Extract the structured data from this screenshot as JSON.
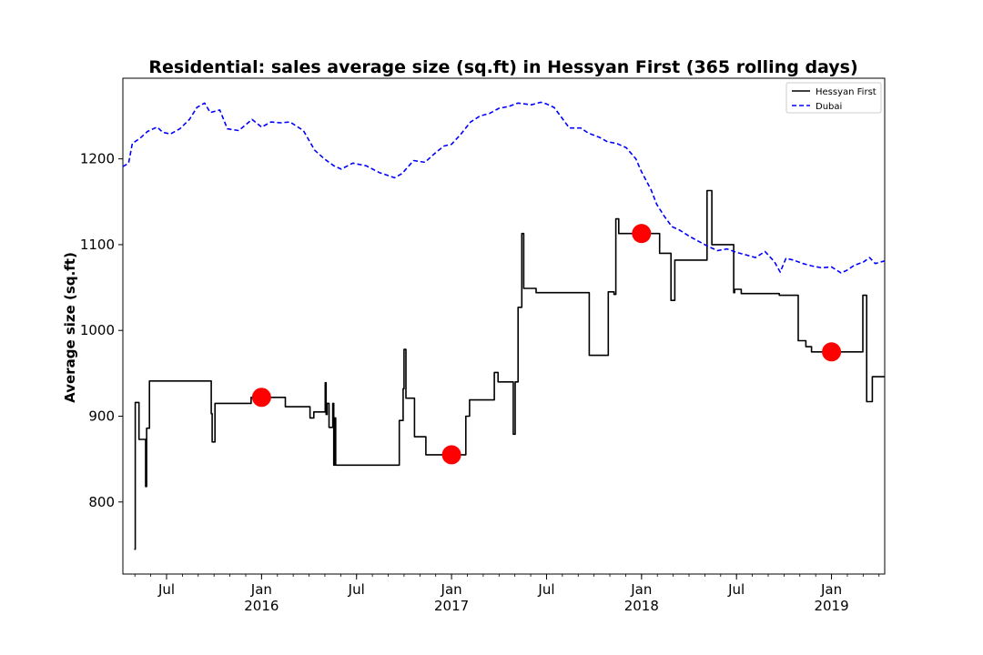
{
  "chart_data": {
    "type": "line",
    "title": "Residential: sales average size (sq.ft) in Hessyan First (365 rolling days)",
    "xlabel": "",
    "ylabel": "Average size (sq.ft)",
    "xlim": [
      2015.27,
      2019.28
    ],
    "ylim": [
      716,
      1294
    ],
    "yticks": [
      800,
      900,
      1000,
      1100,
      1200
    ],
    "grid": false,
    "legend_position": "top-right",
    "xticks_major": [
      {
        "x": 2015.5,
        "label": "Jul",
        "sublabel": ""
      },
      {
        "x": 2016.0,
        "label": "Jan",
        "sublabel": "2016"
      },
      {
        "x": 2016.5,
        "label": "Jul",
        "sublabel": ""
      },
      {
        "x": 2017.0,
        "label": "Jan",
        "sublabel": "2017"
      },
      {
        "x": 2017.5,
        "label": "Jul",
        "sublabel": ""
      },
      {
        "x": 2018.0,
        "label": "Jan",
        "sublabel": "2018"
      },
      {
        "x": 2018.5,
        "label": "Jul",
        "sublabel": ""
      },
      {
        "x": 2019.0,
        "label": "Jan",
        "sublabel": "2019"
      }
    ],
    "series": [
      {
        "name": "Hessyan First",
        "color": "#000000",
        "style": "solid",
        "step": true,
        "points": [
          [
            2015.33,
            745
          ],
          [
            2015.335,
            916
          ],
          [
            2015.35,
            916
          ],
          [
            2015.355,
            873
          ],
          [
            2015.385,
            873
          ],
          [
            2015.39,
            818
          ],
          [
            2015.395,
            886
          ],
          [
            2015.405,
            886
          ],
          [
            2015.41,
            941
          ],
          [
            2015.73,
            941
          ],
          [
            2015.735,
            903
          ],
          [
            2015.74,
            870
          ],
          [
            2015.75,
            870
          ],
          [
            2015.755,
            915
          ],
          [
            2015.94,
            915
          ],
          [
            2015.945,
            922
          ],
          [
            2016.12,
            922
          ],
          [
            2016.125,
            911
          ],
          [
            2016.25,
            911
          ],
          [
            2016.255,
            898
          ],
          [
            2016.27,
            898
          ],
          [
            2016.275,
            905
          ],
          [
            2016.33,
            905
          ],
          [
            2016.335,
            939
          ],
          [
            2016.34,
            902
          ],
          [
            2016.345,
            915
          ],
          [
            2016.35,
            915
          ],
          [
            2016.355,
            887
          ],
          [
            2016.37,
            887
          ],
          [
            2016.375,
            915
          ],
          [
            2016.38,
            843
          ],
          [
            2016.385,
            898
          ],
          [
            2016.39,
            843
          ],
          [
            2016.72,
            843
          ],
          [
            2016.725,
            895
          ],
          [
            2016.74,
            895
          ],
          [
            2016.745,
            932
          ],
          [
            2016.75,
            978
          ],
          [
            2016.755,
            978
          ],
          [
            2016.76,
            921
          ],
          [
            2016.8,
            921
          ],
          [
            2016.805,
            876
          ],
          [
            2016.86,
            876
          ],
          [
            2016.865,
            855
          ],
          [
            2017.07,
            855
          ],
          [
            2017.075,
            900
          ],
          [
            2017.09,
            900
          ],
          [
            2017.095,
            919
          ],
          [
            2017.22,
            919
          ],
          [
            2017.225,
            951
          ],
          [
            2017.24,
            951
          ],
          [
            2017.245,
            940
          ],
          [
            2017.32,
            940
          ],
          [
            2017.325,
            879
          ],
          [
            2017.33,
            879
          ],
          [
            2017.335,
            940
          ],
          [
            2017.35,
            1027
          ],
          [
            2017.365,
            1027
          ],
          [
            2017.37,
            1113
          ],
          [
            2017.375,
            1113
          ],
          [
            2017.38,
            1049
          ],
          [
            2017.44,
            1049
          ],
          [
            2017.445,
            1044
          ],
          [
            2017.72,
            1044
          ],
          [
            2017.725,
            971
          ],
          [
            2017.82,
            971
          ],
          [
            2017.825,
            1045
          ],
          [
            2017.85,
            1045
          ],
          [
            2017.855,
            1042
          ],
          [
            2017.86,
            1042
          ],
          [
            2017.865,
            1130
          ],
          [
            2017.875,
            1130
          ],
          [
            2017.88,
            1113
          ],
          [
            2018.09,
            1113
          ],
          [
            2018.095,
            1090
          ],
          [
            2018.15,
            1090
          ],
          [
            2018.155,
            1035
          ],
          [
            2018.17,
            1035
          ],
          [
            2018.175,
            1082
          ],
          [
            2018.34,
            1082
          ],
          [
            2018.345,
            1163
          ],
          [
            2018.365,
            1163
          ],
          [
            2018.37,
            1100
          ],
          [
            2018.48,
            1100
          ],
          [
            2018.485,
            1044
          ],
          [
            2018.49,
            1048
          ],
          [
            2018.52,
            1048
          ],
          [
            2018.525,
            1043
          ],
          [
            2018.72,
            1043
          ],
          [
            2018.725,
            1041
          ],
          [
            2018.82,
            1041
          ],
          [
            2018.825,
            988
          ],
          [
            2018.86,
            988
          ],
          [
            2018.865,
            981
          ],
          [
            2018.89,
            981
          ],
          [
            2018.895,
            975
          ],
          [
            2019.16,
            975
          ],
          [
            2019.165,
            1041
          ],
          [
            2019.18,
            1041
          ],
          [
            2019.185,
            917
          ],
          [
            2019.21,
            917
          ],
          [
            2019.215,
            946
          ],
          [
            2019.28,
            946
          ]
        ]
      },
      {
        "name": "Dubai",
        "color": "#0000ff",
        "style": "dashed",
        "step": false,
        "points": [
          [
            2015.27,
            1191
          ],
          [
            2015.3,
            1195
          ],
          [
            2015.32,
            1218
          ],
          [
            2015.36,
            1224
          ],
          [
            2015.4,
            1232
          ],
          [
            2015.45,
            1237
          ],
          [
            2015.48,
            1231
          ],
          [
            2015.52,
            1229
          ],
          [
            2015.57,
            1235
          ],
          [
            2015.62,
            1246
          ],
          [
            2015.66,
            1260
          ],
          [
            2015.7,
            1265
          ],
          [
            2015.73,
            1254
          ],
          [
            2015.78,
            1257
          ],
          [
            2015.82,
            1235
          ],
          [
            2015.88,
            1233
          ],
          [
            2015.95,
            1246
          ],
          [
            2016.0,
            1237
          ],
          [
            2016.05,
            1243
          ],
          [
            2016.1,
            1242
          ],
          [
            2016.15,
            1243
          ],
          [
            2016.22,
            1233
          ],
          [
            2016.28,
            1210
          ],
          [
            2016.33,
            1200
          ],
          [
            2016.38,
            1192
          ],
          [
            2016.42,
            1188
          ],
          [
            2016.48,
            1195
          ],
          [
            2016.55,
            1192
          ],
          [
            2016.62,
            1184
          ],
          [
            2016.66,
            1181
          ],
          [
            2016.7,
            1178
          ],
          [
            2016.74,
            1183
          ],
          [
            2016.8,
            1198
          ],
          [
            2016.86,
            1196
          ],
          [
            2016.92,
            1208
          ],
          [
            2016.96,
            1215
          ],
          [
            2017.0,
            1217
          ],
          [
            2017.05,
            1229
          ],
          [
            2017.1,
            1243
          ],
          [
            2017.15,
            1250
          ],
          [
            2017.2,
            1253
          ],
          [
            2017.25,
            1259
          ],
          [
            2017.3,
            1261
          ],
          [
            2017.35,
            1265
          ],
          [
            2017.42,
            1263
          ],
          [
            2017.47,
            1266
          ],
          [
            2017.5,
            1264
          ],
          [
            2017.54,
            1260
          ],
          [
            2017.58,
            1248
          ],
          [
            2017.62,
            1236
          ],
          [
            2017.68,
            1236
          ],
          [
            2017.72,
            1230
          ],
          [
            2017.78,
            1225
          ],
          [
            2017.82,
            1220
          ],
          [
            2017.87,
            1218
          ],
          [
            2017.92,
            1213
          ],
          [
            2017.97,
            1200
          ],
          [
            2018.0,
            1185
          ],
          [
            2018.05,
            1164
          ],
          [
            2018.08,
            1147
          ],
          [
            2018.12,
            1133
          ],
          [
            2018.16,
            1121
          ],
          [
            2018.2,
            1117
          ],
          [
            2018.25,
            1110
          ],
          [
            2018.3,
            1104
          ],
          [
            2018.35,
            1098
          ],
          [
            2018.4,
            1093
          ],
          [
            2018.45,
            1095
          ],
          [
            2018.5,
            1091
          ],
          [
            2018.55,
            1088
          ],
          [
            2018.6,
            1085
          ],
          [
            2018.65,
            1092
          ],
          [
            2018.7,
            1080
          ],
          [
            2018.73,
            1068
          ],
          [
            2018.76,
            1084
          ],
          [
            2018.8,
            1082
          ],
          [
            2018.85,
            1078
          ],
          [
            2018.9,
            1075
          ],
          [
            2018.95,
            1073
          ],
          [
            2019.0,
            1074
          ],
          [
            2019.05,
            1067
          ],
          [
            2019.08,
            1070
          ],
          [
            2019.12,
            1076
          ],
          [
            2019.17,
            1080
          ],
          [
            2019.2,
            1085
          ],
          [
            2019.23,
            1078
          ],
          [
            2019.28,
            1081
          ]
        ]
      }
    ],
    "markers": [
      {
        "x": 2016.0,
        "y": 922,
        "color": "#ff0000"
      },
      {
        "x": 2017.0,
        "y": 855,
        "color": "#ff0000"
      },
      {
        "x": 2018.0,
        "y": 1113,
        "color": "#ff0000"
      },
      {
        "x": 2019.0,
        "y": 975,
        "color": "#ff0000"
      }
    ]
  }
}
